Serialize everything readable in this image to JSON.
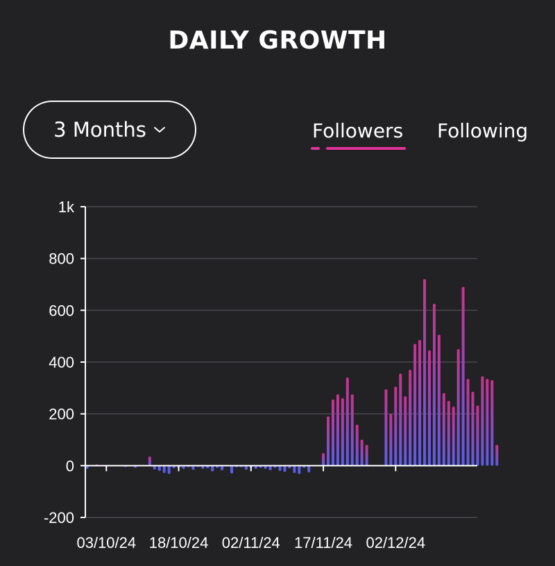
{
  "header": {
    "title": "DAILY GROWTH"
  },
  "range_select": {
    "label": "3 Months",
    "icon": "chevron-down-icon"
  },
  "tabs": [
    {
      "label": "Followers",
      "active": true
    },
    {
      "label": "Following",
      "active": false
    }
  ],
  "colors": {
    "background": "#222124",
    "accent": "#e0339b",
    "bar_top": "#c8338f",
    "bar_bottom": "#5b5ee8",
    "grid": "#4a4a4e",
    "axis": "#ffffff"
  },
  "chart_data": {
    "type": "bar",
    "title": "",
    "xlabel": "",
    "ylabel": "",
    "ylim": [
      -200,
      1000
    ],
    "y_ticks": [
      "-200",
      "0",
      "200",
      "400",
      "600",
      "800",
      "1k"
    ],
    "x_tick_labels": [
      "03/10/24",
      "18/10/24",
      "02/11/24",
      "17/11/24",
      "02/12/24"
    ],
    "grid": true,
    "legend": "none",
    "series": [
      {
        "name": "Followers",
        "start_date": "29/09/24",
        "values": [
          -12,
          0,
          5,
          0,
          -3,
          0,
          0,
          0,
          -5,
          0,
          -8,
          0,
          0,
          35,
          -15,
          -20,
          -28,
          -32,
          -10,
          -8,
          -12,
          -6,
          -16,
          -5,
          -12,
          -10,
          -22,
          -8,
          -18,
          0,
          -30,
          -6,
          -6,
          -16,
          -8,
          -12,
          -8,
          -12,
          -18,
          -8,
          -20,
          -24,
          -10,
          -28,
          -32,
          -8,
          -26,
          0,
          0,
          48,
          190,
          255,
          275,
          260,
          340,
          275,
          158,
          100,
          80,
          0,
          0,
          0,
          295,
          200,
          305,
          355,
          268,
          370,
          470,
          485,
          720,
          445,
          625,
          505,
          280,
          250,
          228,
          450,
          690,
          335,
          285,
          232,
          345,
          335,
          330,
          80
        ]
      }
    ]
  }
}
